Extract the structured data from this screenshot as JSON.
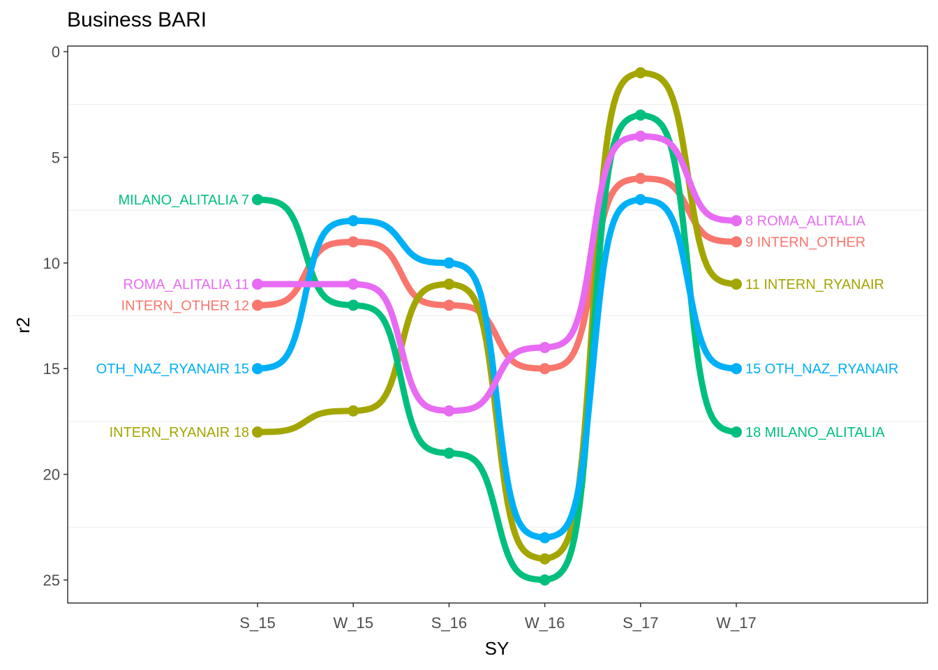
{
  "chart_data": {
    "type": "line",
    "title": "Business BARI",
    "xlabel": "SY",
    "ylabel": "r2",
    "categories": [
      "S_15",
      "W_15",
      "S_16",
      "W_16",
      "S_17",
      "W_17"
    ],
    "ylim": [
      0,
      26
    ],
    "y_reversed": true,
    "yticks": [
      0,
      5,
      10,
      15,
      20,
      25
    ],
    "grid": "horizontal minor lines only",
    "legend": "none (series labeled at line ends)",
    "series": [
      {
        "name": "INTERN_OTHER",
        "color": "#F8766D",
        "values": [
          12,
          9,
          12,
          15,
          6,
          9
        ]
      },
      {
        "name": "INTERN_RYANAIR",
        "color": "#A3A500",
        "values": [
          18,
          17,
          11,
          24,
          1,
          11
        ]
      },
      {
        "name": "MILANO_ALITALIA",
        "color": "#00BF7D",
        "values": [
          7,
          12,
          19,
          25,
          3,
          18
        ]
      },
      {
        "name": "OTH_NAZ_RYANAIR",
        "color": "#00B0F6",
        "values": [
          15,
          8,
          10,
          23,
          7,
          15
        ]
      },
      {
        "name": "ROMA_ALITALIA",
        "color": "#E76BF3",
        "values": [
          11,
          11,
          17,
          14,
          4,
          8
        ]
      }
    ]
  }
}
